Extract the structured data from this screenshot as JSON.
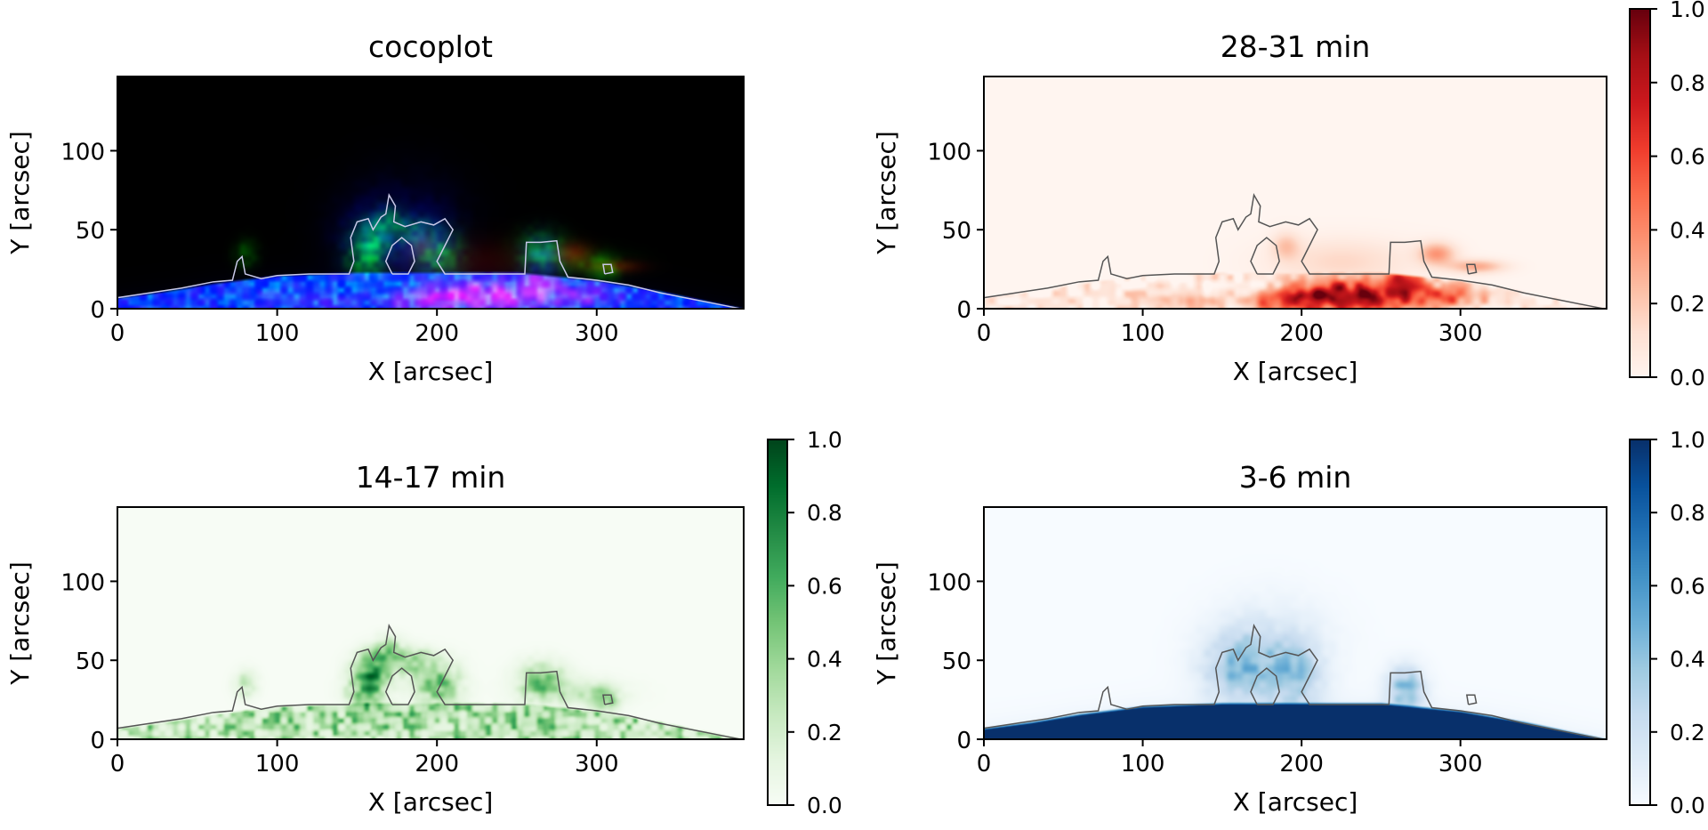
{
  "chart_data": {
    "type": "heatmap",
    "xlabel": "X [arcsec]",
    "ylabel": "Y [arcsec]",
    "xlim": [
      0,
      392
    ],
    "ylim": [
      0,
      147
    ],
    "xticks": [
      "0",
      "100",
      "200",
      "300"
    ],
    "xtick_values": [
      0,
      100,
      200,
      300
    ],
    "yticks": [
      "0",
      "50",
      "100"
    ],
    "ytick_values": [
      0,
      50,
      100
    ],
    "colorbar_ticks": [
      "0.0",
      "0.2",
      "0.4",
      "0.6",
      "0.8",
      "1.0"
    ],
    "colorbar_tick_values": [
      0,
      0.2,
      0.4,
      0.6,
      0.8,
      1.0
    ],
    "colorbar_range": [
      0,
      1
    ],
    "panels": [
      {
        "title": "cocoplot",
        "cmap": "rgb",
        "colorbar": false
      },
      {
        "title": "28-31 min",
        "cmap": "Reds",
        "colorbar": true
      },
      {
        "title": "14-17 min",
        "cmap": "Greens",
        "colorbar": true
      },
      {
        "title": "3-6 min",
        "cmap": "Blues",
        "colorbar": true
      }
    ],
    "colormaps": {
      "Reds": [
        "#fff5f0",
        "#fee0d2",
        "#fcbba1",
        "#fc9272",
        "#fb6a4a",
        "#ef3b2c",
        "#cb181d",
        "#a50f15",
        "#67000d"
      ],
      "Greens": [
        "#f7fcf5",
        "#e5f5e0",
        "#c7e9c0",
        "#a1d99b",
        "#74c476",
        "#41ab5d",
        "#238b45",
        "#006d2c",
        "#00441b"
      ],
      "Blues": [
        "#f7fbff",
        "#deebf7",
        "#c6dbef",
        "#9ecae1",
        "#6baed6",
        "#4292c6",
        "#2171b5",
        "#08519c",
        "#08306b"
      ]
    },
    "limb_profile": [
      [
        0,
        7
      ],
      [
        30,
        11
      ],
      [
        60,
        16
      ],
      [
        100,
        21
      ],
      [
        150,
        23
      ],
      [
        250,
        23
      ],
      [
        300,
        18
      ],
      [
        340,
        11
      ],
      [
        392,
        0
      ]
    ],
    "contour": [
      [
        0,
        7
      ],
      [
        20,
        10
      ],
      [
        40,
        13
      ],
      [
        60,
        17
      ],
      [
        72,
        18
      ],
      [
        75,
        30
      ],
      [
        78,
        33
      ],
      [
        80,
        22
      ],
      [
        90,
        19
      ],
      [
        100,
        21
      ],
      [
        120,
        22
      ],
      [
        145,
        22
      ],
      [
        148,
        30
      ],
      [
        146,
        45
      ],
      [
        150,
        55
      ],
      [
        157,
        57
      ],
      [
        160,
        50
      ],
      [
        165,
        58
      ],
      [
        168,
        60
      ],
      [
        170,
        72
      ],
      [
        174,
        65
      ],
      [
        173,
        55
      ],
      [
        180,
        52
      ],
      [
        190,
        55
      ],
      [
        198,
        53
      ],
      [
        205,
        57
      ],
      [
        210,
        50
      ],
      [
        205,
        40
      ],
      [
        200,
        30
      ],
      [
        205,
        22
      ],
      [
        240,
        22
      ],
      [
        255,
        22
      ],
      [
        256,
        42
      ],
      [
        265,
        42
      ],
      [
        275,
        43
      ],
      [
        277,
        30
      ],
      [
        282,
        20
      ],
      [
        300,
        18
      ],
      [
        320,
        15
      ],
      [
        340,
        10
      ],
      [
        360,
        6
      ],
      [
        380,
        2
      ],
      [
        390,
        0
      ]
    ],
    "contour_loops": [
      [
        [
          172,
          22
        ],
        [
          168,
          30
        ],
        [
          172,
          40
        ],
        [
          178,
          45
        ],
        [
          184,
          40
        ],
        [
          186,
          30
        ],
        [
          182,
          22
        ],
        [
          172,
          22
        ]
      ],
      [
        [
          305,
          22
        ],
        [
          304,
          28
        ],
        [
          309,
          28
        ],
        [
          310,
          23
        ],
        [
          305,
          22
        ]
      ]
    ],
    "intensity_red": [
      [
        240,
        8,
        22,
        7,
        0.9
      ],
      [
        205,
        8,
        15,
        6,
        0.6
      ],
      [
        265,
        18,
        8,
        6,
        0.6
      ],
      [
        180,
        5,
        12,
        5,
        0.5
      ],
      [
        290,
        8,
        18,
        6,
        0.4
      ],
      [
        120,
        6,
        20,
        5,
        0.25
      ],
      [
        285,
        35,
        8,
        5,
        0.35
      ],
      [
        310,
        27,
        12,
        3,
        0.3
      ],
      [
        190,
        40,
        6,
        6,
        0.2
      ],
      [
        225,
        30,
        30,
        10,
        0.15
      ]
    ],
    "intensity_green": [
      [
        160,
        45,
        8,
        8,
        0.8
      ],
      [
        155,
        30,
        8,
        8,
        0.6
      ],
      [
        170,
        60,
        6,
        6,
        0.5
      ],
      [
        200,
        35,
        10,
        10,
        0.6
      ],
      [
        185,
        50,
        8,
        6,
        0.45
      ],
      [
        265,
        38,
        10,
        8,
        0.5
      ],
      [
        285,
        30,
        20,
        6,
        0.25
      ],
      [
        80,
        35,
        5,
        6,
        0.3
      ],
      [
        305,
        25,
        6,
        5,
        0.5
      ],
      [
        170,
        15,
        15,
        8,
        0.5
      ],
      [
        260,
        10,
        20,
        8,
        0.5
      ]
    ],
    "intensity_blue": [
      [
        160,
        45,
        15,
        15,
        0.4
      ],
      [
        195,
        40,
        12,
        15,
        0.35
      ],
      [
        265,
        32,
        8,
        10,
        0.45
      ],
      [
        180,
        60,
        25,
        20,
        0.15
      ]
    ]
  }
}
